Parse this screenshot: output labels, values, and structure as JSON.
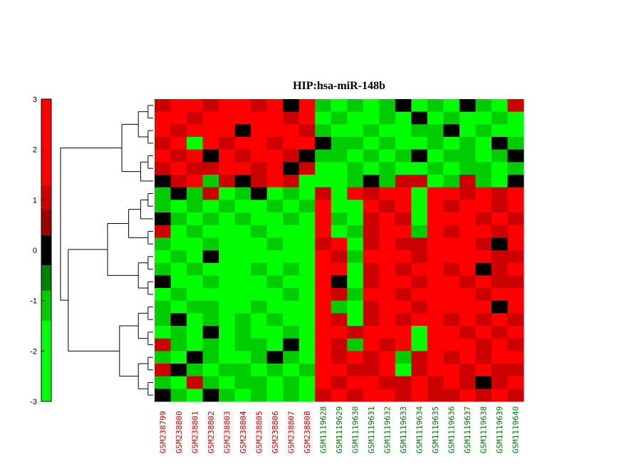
{
  "chart_data": {
    "type": "heatmap",
    "title": "HIP:hsa-miR-148b",
    "colorbar": {
      "min": -3,
      "max": 3,
      "ticks": [
        3,
        2,
        1,
        0,
        -1,
        -2,
        -3
      ],
      "bins": [
        {
          "from": -3,
          "to": -1.4,
          "color": "#00ff00"
        },
        {
          "from": -1.4,
          "to": -0.8,
          "color": "#00cc00"
        },
        {
          "from": -0.8,
          "to": -0.3,
          "color": "#008000"
        },
        {
          "from": -0.3,
          "to": 0.3,
          "color": "#000000"
        },
        {
          "from": 0.3,
          "to": 0.8,
          "color": "#990000"
        },
        {
          "from": 0.8,
          "to": 1.3,
          "color": "#cc0000"
        },
        {
          "from": 1.3,
          "to": 3,
          "color": "#ff0000"
        }
      ]
    },
    "columns": [
      {
        "label": "GSM238799",
        "group": "red"
      },
      {
        "label": "GSM238800",
        "group": "red"
      },
      {
        "label": "GSM238801",
        "group": "red"
      },
      {
        "label": "GSM238802",
        "group": "red"
      },
      {
        "label": "GSM238803",
        "group": "red"
      },
      {
        "label": "GSM238804",
        "group": "red"
      },
      {
        "label": "GSM238805",
        "group": "red"
      },
      {
        "label": "GSM238806",
        "group": "red"
      },
      {
        "label": "GSM238807",
        "group": "red"
      },
      {
        "label": "GSM238808",
        "group": "red"
      },
      {
        "label": "GSM1119628",
        "group": "green"
      },
      {
        "label": "GSM1119629",
        "group": "green"
      },
      {
        "label": "GSM1119630",
        "group": "green"
      },
      {
        "label": "GSM1119631",
        "group": "green"
      },
      {
        "label": "GSM1119632",
        "group": "green"
      },
      {
        "label": "GSM1119633",
        "group": "green"
      },
      {
        "label": "GSM1119634",
        "group": "green"
      },
      {
        "label": "GSM1119635",
        "group": "green"
      },
      {
        "label": "GSM1119636",
        "group": "green"
      },
      {
        "label": "GSM1119637",
        "group": "green"
      },
      {
        "label": "GSM1119638",
        "group": "green"
      },
      {
        "label": "GSM1119639",
        "group": "green"
      },
      {
        "label": "GSM1119640",
        "group": "green"
      }
    ],
    "group_colors": {
      "red": "#cc0000",
      "green": "#007700"
    },
    "values": [
      [
        1,
        2,
        2,
        1,
        2,
        2,
        1,
        2,
        0,
        2,
        -1,
        -2,
        -1,
        -2,
        -1,
        0,
        -2,
        -1,
        -2,
        0,
        -1,
        -2,
        1
      ],
      [
        2,
        2,
        1,
        2,
        2,
        2,
        2,
        2,
        1,
        2,
        -2,
        -1,
        -2,
        -3,
        -1,
        -2,
        0,
        -2,
        -1,
        -2,
        -2,
        -1,
        -2
      ],
      [
        2,
        1,
        2,
        2,
        2,
        0,
        2,
        2,
        2,
        1,
        -1,
        -2,
        -2,
        -1,
        -2,
        -2,
        -1,
        -1,
        0,
        -2,
        -1,
        -2,
        -2
      ],
      [
        1,
        2,
        -2,
        2,
        1,
        2,
        2,
        1,
        2,
        2,
        0,
        -1,
        -1,
        -2,
        -1,
        -2,
        -2,
        -1,
        -2,
        -1,
        -2,
        0,
        -1
      ],
      [
        2,
        1,
        2,
        0,
        2,
        1,
        2,
        2,
        1,
        0,
        -1,
        -1,
        -2,
        -1,
        -2,
        -1,
        0,
        -2,
        -1,
        -1,
        -2,
        -1,
        0
      ],
      [
        1,
        2,
        1,
        1,
        2,
        2,
        1,
        2,
        0,
        1,
        -2,
        -2,
        -1,
        -2,
        -1,
        -2,
        -2,
        -1,
        -2,
        -1,
        -1,
        -2,
        -1
      ],
      [
        0,
        1,
        2,
        -1,
        1,
        0,
        1,
        2,
        1,
        -2,
        -2,
        -3,
        -1,
        0,
        -1,
        1,
        1,
        -2,
        -1,
        1,
        -1,
        -2,
        0
      ],
      [
        -1,
        0,
        -1,
        1,
        -2,
        -1,
        0,
        -2,
        -1,
        -2,
        1,
        -2,
        2,
        1,
        2,
        2,
        -2,
        2,
        2,
        1,
        2,
        1,
        2
      ],
      [
        -1,
        -2,
        -1,
        -2,
        -1,
        -2,
        -2,
        -1,
        -2,
        -1,
        2,
        -2,
        -2,
        2,
        1,
        2,
        -2,
        2,
        1,
        2,
        2,
        1,
        2
      ],
      [
        0,
        -1,
        -2,
        -1,
        -2,
        -1,
        -2,
        -2,
        -1,
        -2,
        2,
        -1,
        -2,
        1,
        2,
        1,
        -2,
        2,
        2,
        2,
        1,
        2,
        1
      ],
      [
        1,
        -2,
        -1,
        -2,
        -3,
        -2,
        -1,
        -2,
        -2,
        -2,
        2,
        -2,
        -1,
        1,
        2,
        2,
        -1,
        2,
        1,
        2,
        2,
        1,
        2
      ],
      [
        -1,
        -2,
        -2,
        -1,
        -3,
        -2,
        -2,
        -1,
        -2,
        -3,
        1,
        2,
        -2,
        1,
        2,
        1,
        1,
        2,
        2,
        2,
        1,
        0,
        2
      ],
      [
        -2,
        -1,
        -2,
        0,
        -3,
        -2,
        -2,
        -2,
        -2,
        -3,
        2,
        1,
        -1,
        2,
        2,
        2,
        1,
        2,
        2,
        2,
        2,
        1,
        1
      ],
      [
        -1,
        -2,
        -1,
        -2,
        -3,
        -2,
        -1,
        -2,
        -1,
        -3,
        2,
        2,
        -2,
        1,
        2,
        1,
        2,
        2,
        1,
        2,
        0,
        1,
        2
      ],
      [
        0,
        -2,
        -2,
        -1,
        -2,
        -3,
        -2,
        -1,
        -2,
        -2,
        2,
        0,
        -2,
        1,
        2,
        2,
        1,
        2,
        2,
        1,
        2,
        1,
        1
      ],
      [
        -2,
        -1,
        -2,
        -2,
        -3,
        -2,
        -2,
        -2,
        -1,
        -3,
        2,
        1,
        -1,
        2,
        2,
        1,
        2,
        2,
        2,
        2,
        1,
        2,
        2
      ],
      [
        -1,
        -2,
        -1,
        -1,
        -2,
        -2,
        -1,
        -2,
        -2,
        -3,
        2,
        -1,
        -2,
        1,
        2,
        2,
        1,
        2,
        2,
        2,
        2,
        0,
        2
      ],
      [
        -1,
        0,
        -2,
        -1,
        -2,
        -1,
        -2,
        -1,
        -2,
        -2,
        2,
        1,
        -2,
        1,
        2,
        1,
        2,
        2,
        1,
        2,
        1,
        2,
        1
      ],
      [
        -2,
        -1,
        -2,
        0,
        -2,
        -1,
        -2,
        -2,
        -1,
        -3,
        2,
        2,
        1,
        2,
        2,
        2,
        -2,
        2,
        2,
        1,
        2,
        1,
        2
      ],
      [
        1,
        -1,
        -2,
        -1,
        -2,
        -1,
        -1,
        -2,
        0,
        -2,
        2,
        1,
        -1,
        2,
        1,
        2,
        -2,
        2,
        2,
        2,
        1,
        2,
        1
      ],
      [
        -1,
        -2,
        0,
        -1,
        -2,
        -2,
        -1,
        0,
        -1,
        -2,
        2,
        1,
        2,
        1,
        2,
        -1,
        1,
        2,
        1,
        2,
        1,
        2,
        2
      ],
      [
        1,
        0,
        -1,
        -2,
        -1,
        -1,
        -2,
        -1,
        -2,
        -1,
        2,
        2,
        1,
        1,
        2,
        -2,
        1,
        2,
        2,
        1,
        2,
        1,
        1
      ],
      [
        -1,
        -2,
        1,
        -1,
        -2,
        -1,
        -1,
        -2,
        -1,
        -2,
        2,
        1,
        2,
        2,
        1,
        1,
        2,
        1,
        2,
        1,
        0,
        1,
        2
      ],
      [
        0,
        -1,
        -2,
        0,
        -1,
        -2,
        -1,
        -2,
        -1,
        -2,
        1,
        2,
        1,
        2,
        2,
        1,
        2,
        1,
        1,
        2,
        1,
        2,
        1
      ]
    ],
    "dendrogram": "rows",
    "legend": "left"
  }
}
